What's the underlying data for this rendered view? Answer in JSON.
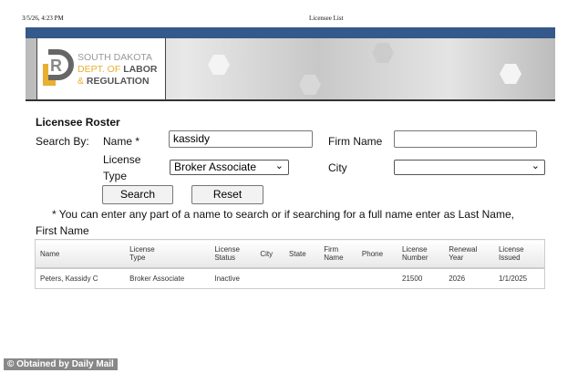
{
  "print_header": {
    "datetime": "3/5/26, 4:23 PM",
    "title": "Licensee List"
  },
  "logo": {
    "line1": "SOUTH DAKOTA",
    "line2a": "DEPT. OF ",
    "line2b": "LABOR",
    "line3a": "& ",
    "line3b": "REGULATION",
    "brand_blue": "#34598a",
    "brand_gold": "#e8b030"
  },
  "form": {
    "heading": "Licensee Roster",
    "search_by": "Search By:",
    "name_label": "Name *",
    "name_value": "kassidy",
    "firm_label": "Firm Name",
    "firm_value": "",
    "type_label_1": "License",
    "type_label_2": "Type",
    "type_value": "Broker Associate",
    "city_label": "City",
    "city_value": "",
    "search_button": "Search",
    "reset_button": "Reset",
    "hint_1": "* You can enter any part of a name to search or if searching for a full name enter as Last Name,",
    "hint_2": "First Name"
  },
  "table": {
    "headers": [
      [
        "Name",
        ""
      ],
      [
        "License",
        "Type"
      ],
      [
        "License",
        "Status"
      ],
      [
        "City",
        ""
      ],
      [
        "State",
        ""
      ],
      [
        "Firm",
        "Name"
      ],
      [
        "Phone",
        ""
      ],
      [
        "License",
        "Number"
      ],
      [
        "Renewal",
        "Year"
      ],
      [
        "License",
        "Issued"
      ]
    ],
    "rows": [
      [
        "Peters, Kassidy C",
        "Broker Associate",
        "Inactive",
        "",
        "",
        "",
        "",
        "21500",
        "2026",
        "1/1/2025"
      ]
    ]
  },
  "watermark": "© Obtained by Daily Mail"
}
